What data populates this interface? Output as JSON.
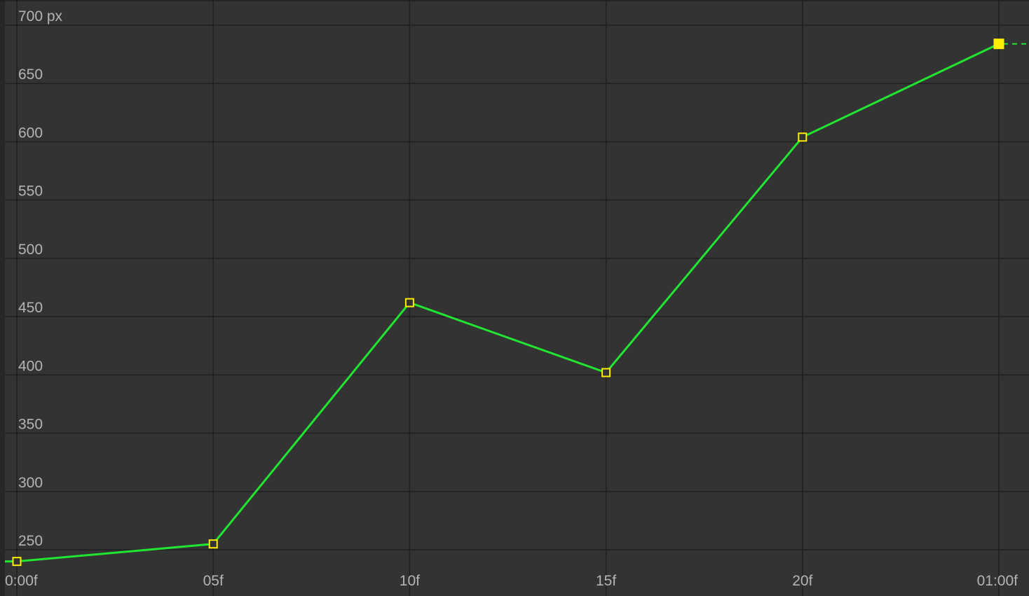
{
  "graph_editor": {
    "y_unit": "px",
    "y_tick_labels": [
      "250",
      "300",
      "350",
      "400",
      "450",
      "500",
      "550",
      "600",
      "650",
      "700 px"
    ],
    "x_tick_labels": [
      "0:00f",
      "05f",
      "10f",
      "15f",
      "20f",
      "01:00f"
    ]
  },
  "chart_data": {
    "type": "line",
    "xlabel": "",
    "ylabel": "",
    "x_unit": "frames",
    "y_unit": "px",
    "ylim": [
      245,
      705
    ],
    "xlim": [
      0,
      25
    ],
    "y_ticks": [
      250,
      300,
      350,
      400,
      450,
      500,
      550,
      600,
      650,
      700
    ],
    "x_ticks": [
      0,
      5,
      10,
      15,
      20,
      25
    ],
    "x_tick_labels": [
      "0:00f",
      "05f",
      "10f",
      "15f",
      "20f",
      "01:00f"
    ],
    "grid": true,
    "series": [
      {
        "color": "#22e532",
        "x": [
          0,
          5,
          10,
          15,
          20,
          25
        ],
        "y": [
          240,
          255,
          462,
          402,
          604,
          684
        ]
      }
    ],
    "selected_keyframe_index": 5,
    "colors": {
      "background": "#333333",
      "grid": "#1f1f1f",
      "curve": "#22e532",
      "keyframe": "#ffee00",
      "label": "#b4b4b4"
    }
  }
}
